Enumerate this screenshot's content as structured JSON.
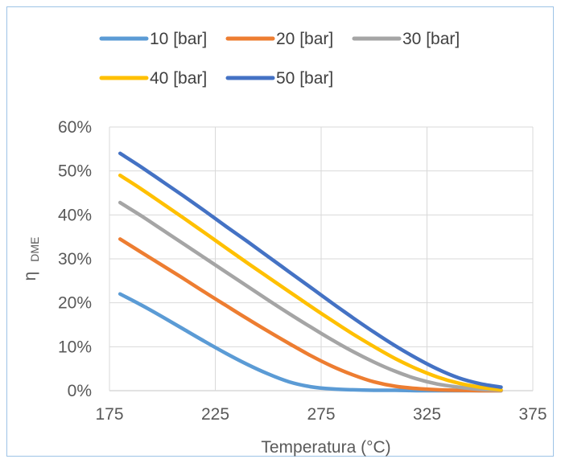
{
  "chart_data": {
    "type": "line",
    "title": "",
    "xlabel": "Temperatura (°C)",
    "ylabel": "η",
    "ylabel_sub": "DME",
    "xlim": [
      175,
      375
    ],
    "ylim": [
      0,
      0.6
    ],
    "x_ticks": [
      175,
      225,
      275,
      325,
      375
    ],
    "y_ticks": [
      0,
      0.1,
      0.2,
      0.3,
      0.4,
      0.5,
      0.6
    ],
    "x_tick_labels": [
      "175",
      "225",
      "275",
      "325",
      "375"
    ],
    "y_tick_labels": [
      "0%",
      "10%",
      "20%",
      "30%",
      "40%",
      "50%",
      "60%"
    ],
    "grid": true,
    "legend_position": "top",
    "x": [
      180,
      190,
      200,
      210,
      220,
      230,
      240,
      250,
      260,
      270,
      280,
      290,
      300,
      310,
      320,
      330,
      340,
      350,
      360
    ],
    "series": [
      {
        "name": "10 [bar]",
        "color": "#5b9bd5",
        "values": [
          0.22,
          0.195,
          0.168,
          0.14,
          0.112,
          0.085,
          0.06,
          0.038,
          0.02,
          0.009,
          0.004,
          0.002,
          0.001,
          0.001,
          0.0,
          0.0,
          0.0,
          0.0,
          0.0
        ]
      },
      {
        "name": "20 [bar]",
        "color": "#ed7d31",
        "values": [
          0.345,
          0.315,
          0.285,
          0.255,
          0.224,
          0.194,
          0.164,
          0.135,
          0.107,
          0.08,
          0.056,
          0.036,
          0.02,
          0.01,
          0.005,
          0.002,
          0.001,
          0.0,
          0.0
        ]
      },
      {
        "name": "30 [bar]",
        "color": "#a5a5a5",
        "values": [
          0.428,
          0.398,
          0.366,
          0.334,
          0.302,
          0.27,
          0.238,
          0.206,
          0.175,
          0.145,
          0.116,
          0.089,
          0.065,
          0.044,
          0.027,
          0.015,
          0.008,
          0.003,
          0.001
        ]
      },
      {
        "name": "40 [bar]",
        "color": "#ffc000",
        "values": [
          0.49,
          0.459,
          0.426,
          0.393,
          0.359,
          0.325,
          0.291,
          0.258,
          0.225,
          0.192,
          0.16,
          0.129,
          0.1,
          0.073,
          0.05,
          0.031,
          0.017,
          0.008,
          0.002
        ]
      },
      {
        "name": "50 [bar]",
        "color": "#4472c4",
        "values": [
          0.54,
          0.509,
          0.476,
          0.443,
          0.409,
          0.374,
          0.34,
          0.305,
          0.27,
          0.235,
          0.2,
          0.166,
          0.133,
          0.102,
          0.074,
          0.049,
          0.029,
          0.016,
          0.008
        ]
      }
    ]
  }
}
